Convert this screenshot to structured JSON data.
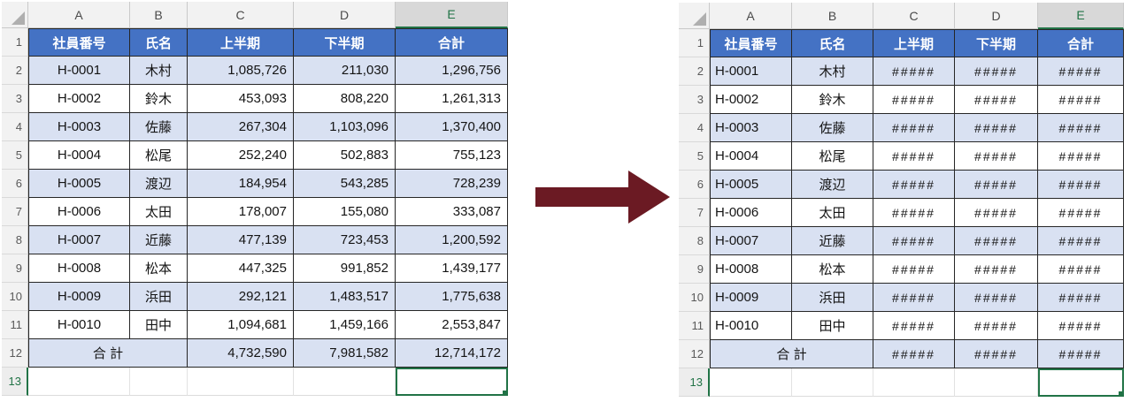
{
  "colors": {
    "header_fill": "#4472C4",
    "band_fill": "#D9E1F2",
    "selection_green": "#217346",
    "arrow_color": "#6B1A23",
    "grid_border": "#262626"
  },
  "arrow": {
    "icon": "right-arrow-icon",
    "direction": "right"
  },
  "left_table": {
    "column_letters": [
      "A",
      "B",
      "C",
      "D",
      "E"
    ],
    "selected_column": "E",
    "headers": [
      "社員番号",
      "氏名",
      "上半期",
      "下半期",
      "合計"
    ],
    "rows": [
      [
        "2",
        "H-0001",
        "木村",
        "1,085,726",
        "211,030",
        "1,296,756"
      ],
      [
        "3",
        "H-0002",
        "鈴木",
        "453,093",
        "808,220",
        "1,261,313"
      ],
      [
        "4",
        "H-0003",
        "佐藤",
        "267,304",
        "1,103,096",
        "1,370,400"
      ],
      [
        "5",
        "H-0004",
        "松尾",
        "252,240",
        "502,883",
        "755,123"
      ],
      [
        "6",
        "H-0005",
        "渡辺",
        "184,954",
        "543,285",
        "728,239"
      ],
      [
        "7",
        "H-0006",
        "太田",
        "178,007",
        "155,080",
        "333,087"
      ],
      [
        "8",
        "H-0007",
        "近藤",
        "477,139",
        "723,453",
        "1,200,592"
      ],
      [
        "9",
        "H-0008",
        "松本",
        "447,325",
        "991,852",
        "1,439,177"
      ],
      [
        "10",
        "H-0009",
        "浜田",
        "292,121",
        "1,483,517",
        "1,775,638"
      ],
      [
        "11",
        "H-0010",
        "田中",
        "1,094,681",
        "1,459,166",
        "2,553,847"
      ]
    ],
    "total_row": [
      "12",
      "合 計",
      "4,732,590",
      "7,981,582",
      "12,714,172"
    ],
    "empty_row_num": "13",
    "selected_cell": "E13"
  },
  "right_table": {
    "column_letters": [
      "A",
      "B",
      "C",
      "D",
      "E"
    ],
    "selected_column": "E",
    "headers": [
      "社員番号",
      "氏名",
      "上半期",
      "下半期",
      "合計"
    ],
    "rows": [
      [
        "2",
        "H-0001",
        "木村",
        "#####",
        "#####",
        "#####"
      ],
      [
        "3",
        "H-0002",
        "鈴木",
        "#####",
        "#####",
        "#####"
      ],
      [
        "4",
        "H-0003",
        "佐藤",
        "#####",
        "#####",
        "#####"
      ],
      [
        "5",
        "H-0004",
        "松尾",
        "#####",
        "#####",
        "#####"
      ],
      [
        "6",
        "H-0005",
        "渡辺",
        "#####",
        "#####",
        "#####"
      ],
      [
        "7",
        "H-0006",
        "太田",
        "#####",
        "#####",
        "#####"
      ],
      [
        "8",
        "H-0007",
        "近藤",
        "#####",
        "#####",
        "#####"
      ],
      [
        "9",
        "H-0008",
        "松本",
        "#####",
        "#####",
        "#####"
      ],
      [
        "10",
        "H-0009",
        "浜田",
        "#####",
        "#####",
        "#####"
      ],
      [
        "11",
        "H-0010",
        "田中",
        "#####",
        "#####",
        "#####"
      ]
    ],
    "total_row": [
      "12",
      "合 計",
      "#####",
      "#####",
      "#####"
    ],
    "empty_row_num": "13",
    "selected_cell": "E13"
  }
}
